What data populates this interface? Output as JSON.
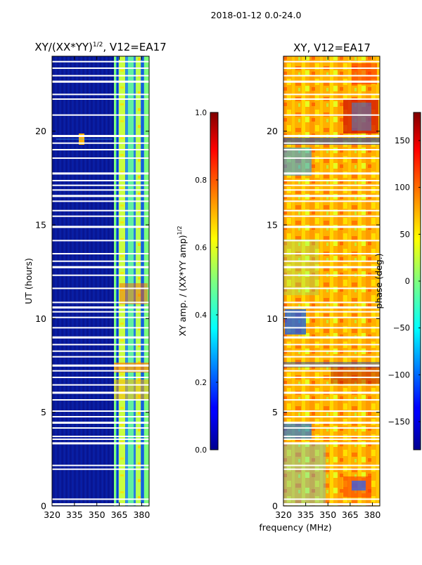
{
  "figure": {
    "suptitle": "2018-01-12 0.0-24.0",
    "xlabel": "frequency (MHz)"
  },
  "chart_data": [
    {
      "type": "heatmap",
      "title_main": "XY/(XX*YY)",
      "title_sup": "1/2",
      "title_rest": ", V12=EA17",
      "xlabel": "",
      "ylabel": "UT (hours)",
      "xlim": [
        320,
        385
      ],
      "ylim": [
        0,
        24
      ],
      "xticks": [
        "320",
        "335",
        "350",
        "365",
        "380"
      ],
      "yticks": [
        "0",
        "5",
        "10",
        "15",
        "20"
      ],
      "colorbar": {
        "label_main": "XY amp. / (XX*YY amp)",
        "label_sup": "1/2",
        "range": [
          0.0,
          1.0
        ],
        "ticks": [
          "0.0",
          "0.2",
          "0.4",
          "0.6",
          "0.8",
          "1.0"
        ]
      },
      "colormap": "jet",
      "description_values": {
        "background_amp": 0.05,
        "band_365_380_amp": 0.5,
        "band_start_mhz": 363
      }
    },
    {
      "type": "heatmap",
      "title_main": "XY, V12=EA17",
      "xlabel": "",
      "ylabel": "",
      "xlim": [
        320,
        385
      ],
      "ylim": [
        0,
        24
      ],
      "xticks": [
        "320",
        "335",
        "350",
        "365",
        "380"
      ],
      "yticks": [
        "0",
        "5",
        "10",
        "15",
        "20"
      ],
      "colorbar": {
        "label_main": "phase (deg.)",
        "range": [
          -180,
          180
        ],
        "ticks": [
          "−150",
          "−100",
          "−50",
          "0",
          "50",
          "100",
          "150"
        ]
      },
      "colormap": "jet",
      "description_values": {
        "typical_phase_deg": 60
      }
    }
  ],
  "flagged_hours": [
    0.1,
    0.35,
    1.95,
    2.15,
    3.35,
    3.55,
    3.7,
    4.15,
    4.45,
    4.75,
    5.05,
    5.65,
    6.05,
    6.45,
    6.85,
    7.2,
    7.5,
    7.95,
    8.25,
    8.6,
    9.0,
    9.5,
    10.05,
    10.35,
    10.6,
    10.85,
    11.6,
    12.3,
    12.75,
    13.05,
    13.45,
    14.15,
    14.9,
    15.45,
    15.75,
    16.25,
    16.55,
    16.85,
    17.1,
    17.35,
    17.75,
    18.55,
    19.0,
    19.35,
    19.75,
    20.85,
    21.7,
    21.95,
    22.65,
    22.95,
    23.35,
    23.7
  ],
  "colors": {
    "jet_dark_blue": "#00008f",
    "jet_blue": "#0000ff",
    "jet_cyan": "#00ffff",
    "jet_yellow": "#ffff00",
    "jet_red": "#ff0000",
    "jet_dark_red": "#800000"
  }
}
